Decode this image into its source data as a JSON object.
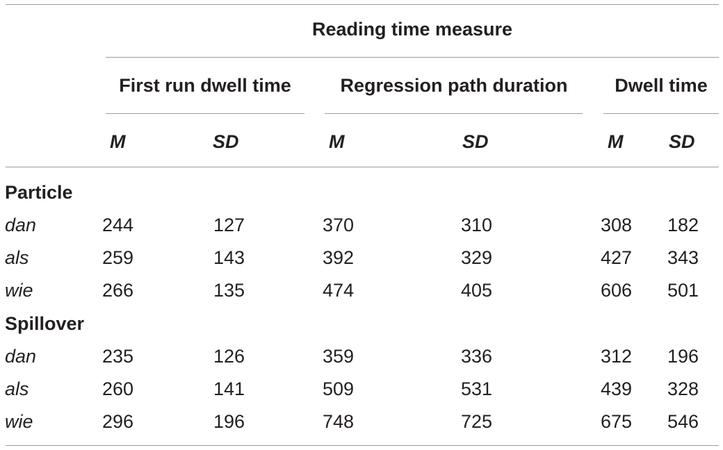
{
  "table": {
    "super_header": "Reading time measure",
    "groups": [
      "First run dwell time",
      "Regression path duration",
      "Dwell time"
    ],
    "sub_headers": [
      "M",
      "SD",
      "M",
      "SD",
      "M",
      "SD"
    ],
    "sections": [
      {
        "label": "Particle",
        "rows": [
          {
            "label": "dan",
            "values": [
              "244",
              "127",
              "370",
              "310",
              "308",
              "182"
            ]
          },
          {
            "label": "als",
            "values": [
              "259",
              "143",
              "392",
              "329",
              "427",
              "343"
            ]
          },
          {
            "label": "wie",
            "values": [
              "266",
              "135",
              "474",
              "405",
              "606",
              "501"
            ]
          }
        ]
      },
      {
        "label": "Spillover",
        "rows": [
          {
            "label": "dan",
            "values": [
              "235",
              "126",
              "359",
              "336",
              "312",
              "196"
            ]
          },
          {
            "label": "als",
            "values": [
              "260",
              "141",
              "509",
              "531",
              "439",
              "328"
            ]
          },
          {
            "label": "wie",
            "values": [
              "296",
              "196",
              "748",
              "725",
              "675",
              "546"
            ]
          }
        ]
      }
    ]
  }
}
